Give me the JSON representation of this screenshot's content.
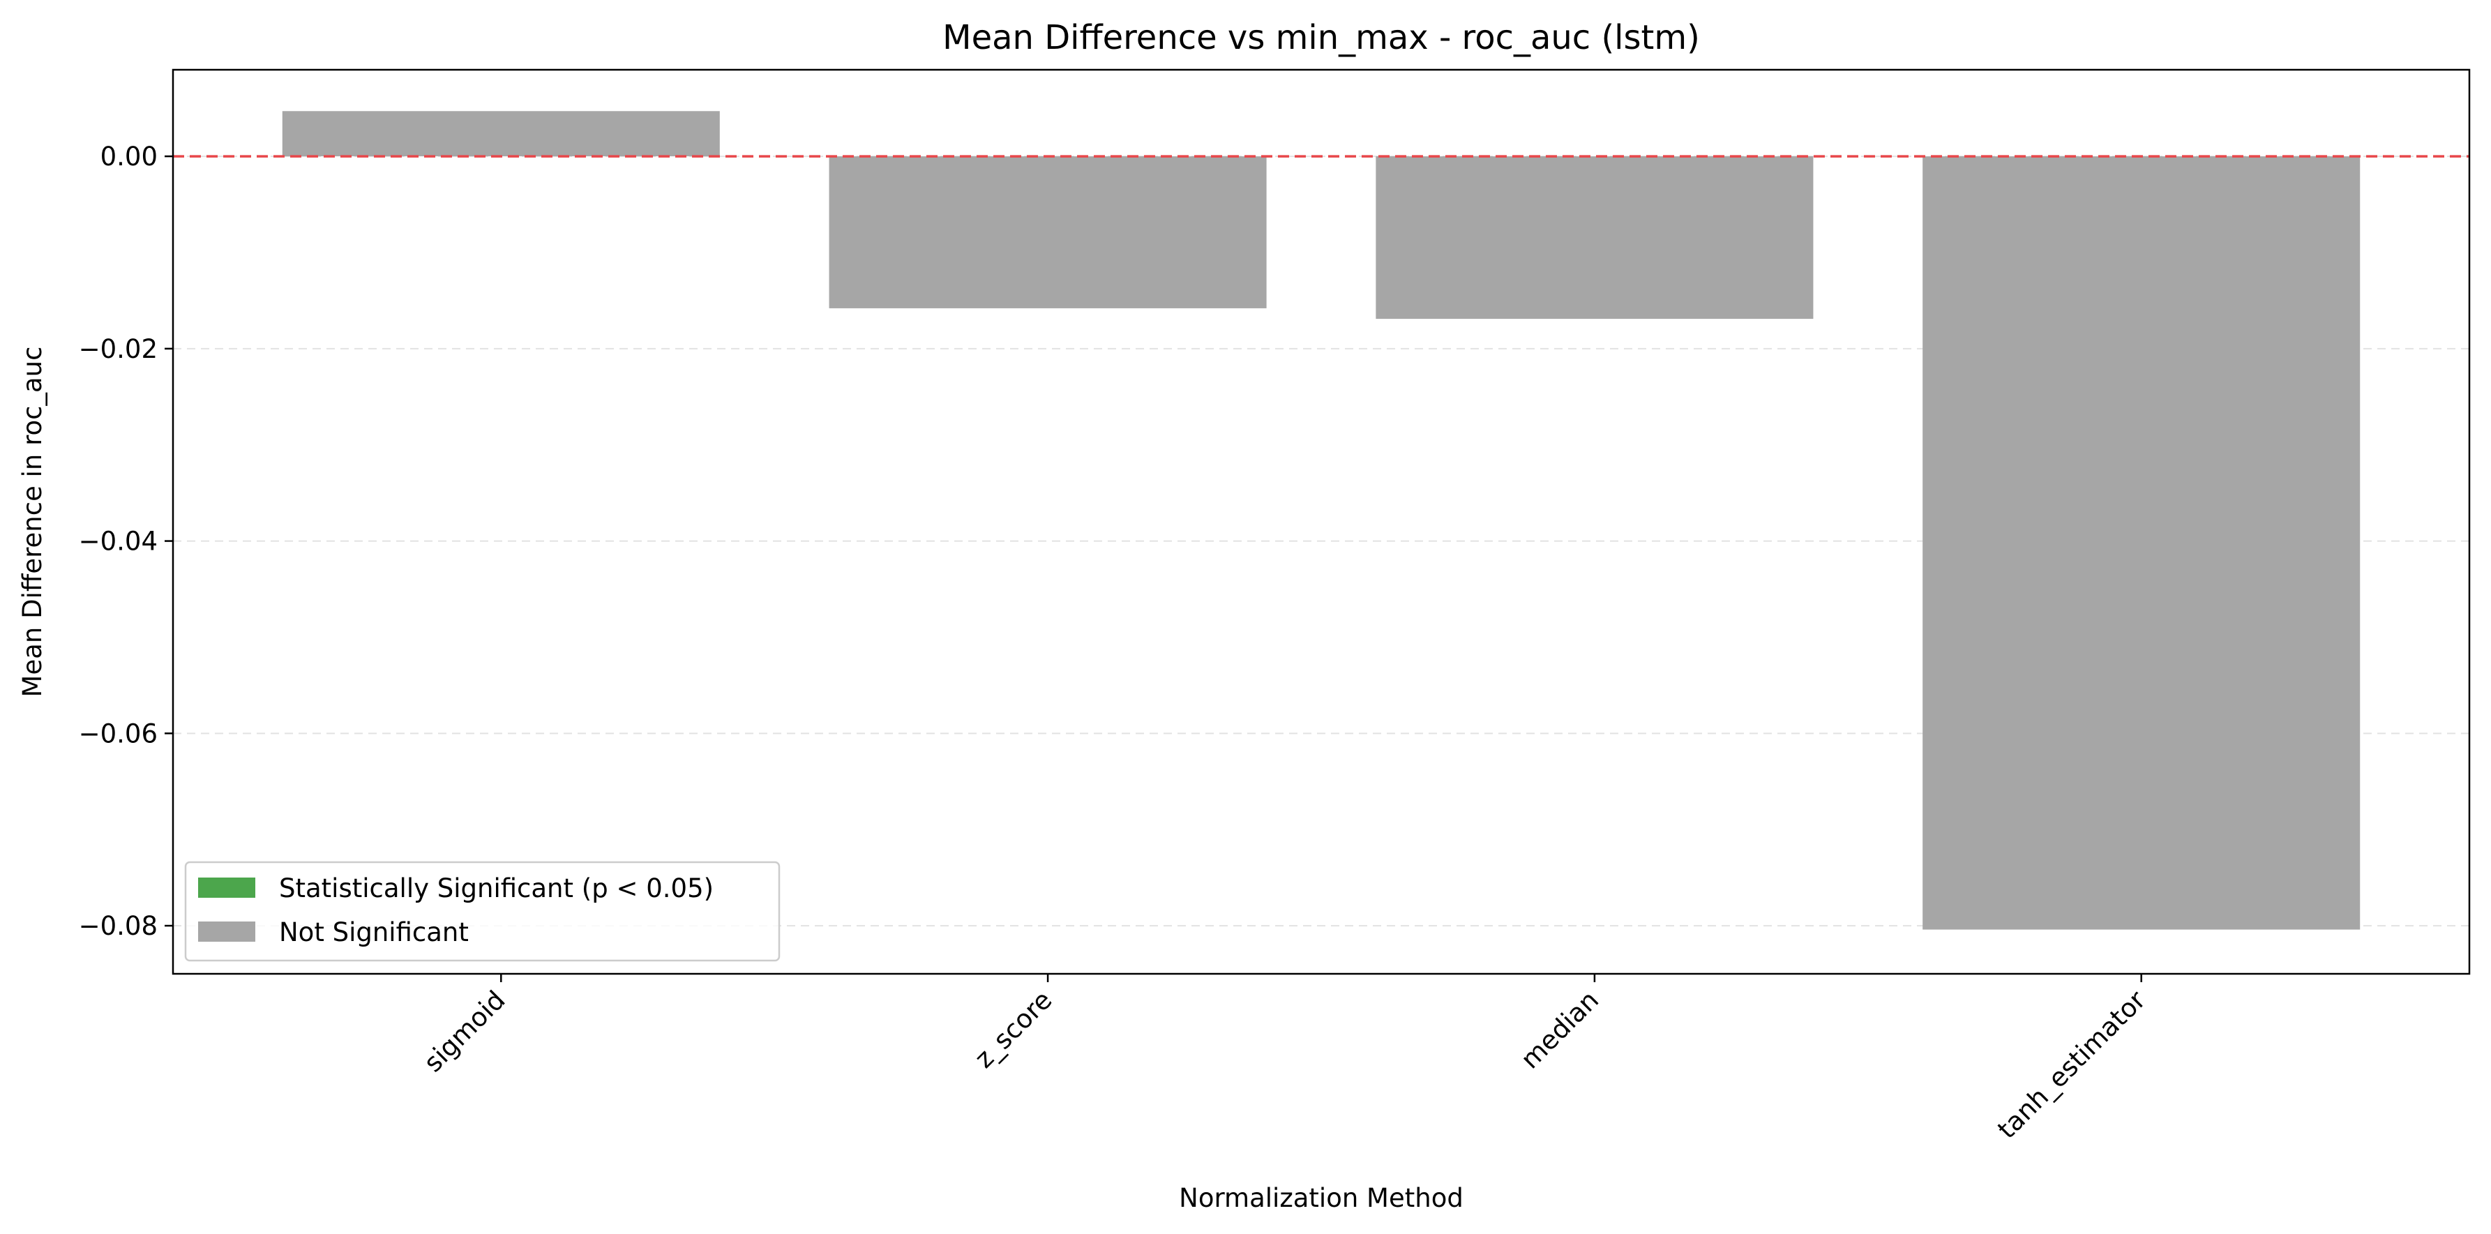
{
  "chart_data": {
    "type": "bar",
    "title": "Mean Difference vs min_max - roc_auc (lstm)",
    "xlabel": "Normalization Method",
    "ylabel": "Mean Difference in roc_auc",
    "categories": [
      "sigmoid",
      "z_score",
      "median",
      "tanh_estimator"
    ],
    "values": [
      0.0047,
      -0.0158,
      -0.0169,
      -0.0804
    ],
    "significant": [
      false,
      false,
      false,
      false
    ],
    "ylim": [
      -0.085,
      0.009
    ],
    "yticks": [
      0.0,
      -0.02,
      -0.04,
      -0.06,
      -0.08
    ],
    "ytick_labels": [
      "0.00",
      "−0.02",
      "−0.04",
      "−0.06",
      "−0.08"
    ],
    "reference_line": 0.0,
    "grid": "y-dashed",
    "legend_position": "lower-left",
    "legend": [
      {
        "label": "Statistically Significant (p < 0.05)",
        "color": "#4ca64c"
      },
      {
        "label": "Not Significant",
        "color": "#a6a6a6"
      }
    ],
    "colors": {
      "significant": "#4ca64c",
      "not_significant": "#a6a6a6",
      "reference_line": "#e8474a",
      "grid": "#e2e2e2"
    }
  }
}
